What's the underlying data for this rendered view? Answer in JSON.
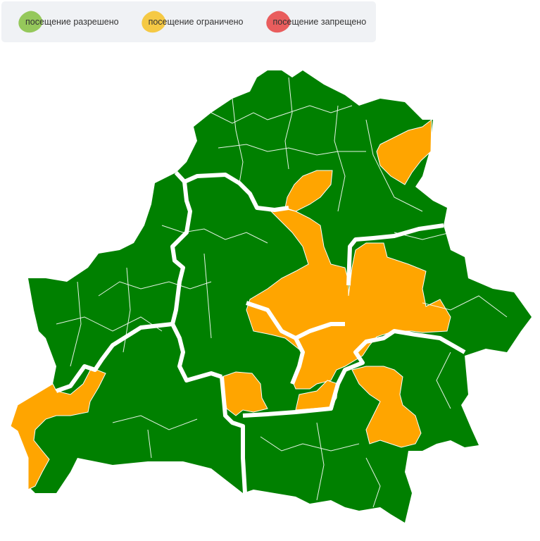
{
  "legend": {
    "items": [
      {
        "label": "посещение разрешено",
        "color": "#8bc34a"
      },
      {
        "label": "посещение ограничено",
        "color": "#f5c431"
      },
      {
        "label": "посещение запрещено",
        "color": "#e84c4c"
      }
    ]
  },
  "map": {
    "colors": {
      "allowed": "#008000",
      "restricted": "#ffa500",
      "border": "#ffffff"
    }
  }
}
